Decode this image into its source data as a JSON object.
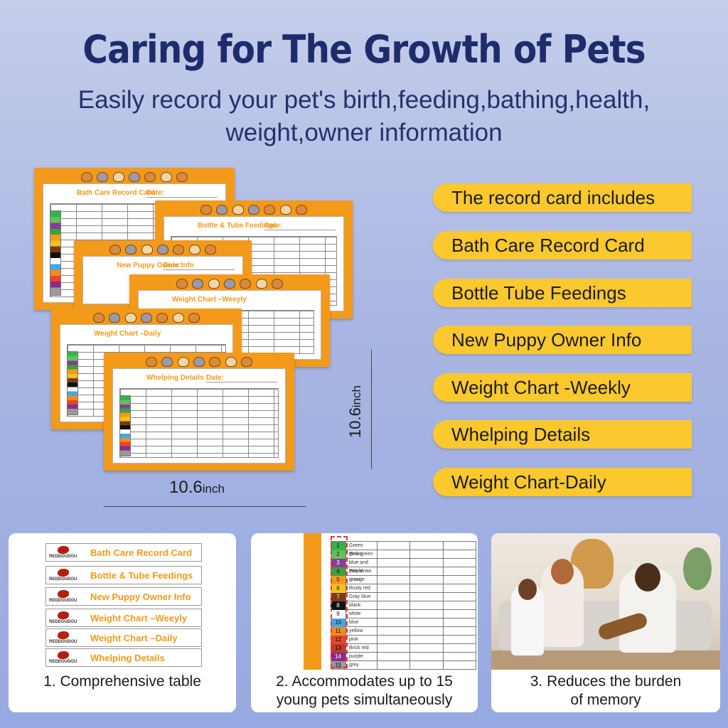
{
  "header": {
    "title": "Caring for The Growth of Pets",
    "subtitle": "Easily record your pet's birth,feeding,bathing,health, weight,owner information"
  },
  "cards": [
    {
      "title": "Bath Care Record Card",
      "date_label": "Date:"
    },
    {
      "title": "Bottle & Tube Feedings",
      "date_label": "Date:"
    },
    {
      "title": "New Puppy Owner Info",
      "date_label": "Date:"
    },
    {
      "title": "Weight Chart –Weeyly",
      "date_label": "Date:"
    },
    {
      "title": "Weight Chart –Daily",
      "date_label": "Date:"
    },
    {
      "title": "Whelping Details",
      "date_label": "Date:"
    }
  ],
  "dimensions": {
    "height_value": "10.6",
    "height_unit": "inch",
    "width_value": "10.6",
    "width_unit": "inch"
  },
  "includes": [
    "The record card includes",
    "Bath Care Record Card",
    "Bottle Tube Feedings",
    "New Puppy Owner Info",
    "Weight Chart -Weekly",
    "Whelping Details",
    "Weight Chart-Daily"
  ],
  "features": {
    "panel1": {
      "caption": "1. Comprehensive table",
      "brand": "REDDOUDOU",
      "strips": [
        "Bath Care Record Card",
        "Bottle & Tube Feedings",
        "New Puppy Owner Info",
        "Weight Chart –Weeyly",
        "Weight Chart –Daily",
        "Whelping Details"
      ]
    },
    "panel2": {
      "caption_line1": "2. Accommodates up to 15",
      "caption_line2": "young pets simultaneously",
      "rows": [
        {
          "num": "1",
          "name": "Green green",
          "color": "#35b24a"
        },
        {
          "num": "2",
          "name": "Pink green",
          "color": "#5fc35a"
        },
        {
          "num": "3",
          "name": "blue and purple",
          "color": "#8a3c9a"
        },
        {
          "num": "4",
          "name": "Pea straw green",
          "color": "#3ea23a"
        },
        {
          "num": "5",
          "name": "orange",
          "color": "#f39a1b"
        },
        {
          "num": "6",
          "name": "Rusty red",
          "color": "#f4c21e"
        },
        {
          "num": "7",
          "name": "Gray blue",
          "color": "#7a3a1a"
        },
        {
          "num": "8",
          "name": "black",
          "color": "#111111"
        },
        {
          "num": "9",
          "name": "white",
          "color": "#ffffff"
        },
        {
          "num": "10",
          "name": "blue",
          "color": "#3fa9e8"
        },
        {
          "num": "11",
          "name": "yellow",
          "color": "#f38a20"
        },
        {
          "num": "12",
          "name": "pink",
          "color": "#e8452c"
        },
        {
          "num": "13",
          "name": "Brick red",
          "color": "#c0392b"
        },
        {
          "num": "14",
          "name": "purple",
          "color": "#8b2b8b"
        },
        {
          "num": "15",
          "name": "grey",
          "color": "#999999"
        }
      ]
    },
    "panel3": {
      "caption_line1": "3. Reduces the burden",
      "caption_line2": "of memory"
    }
  },
  "colors": {
    "accent_orange": "#f39a1b",
    "pill_yellow": "#fbc82e",
    "title_navy": "#1f2c6b"
  }
}
